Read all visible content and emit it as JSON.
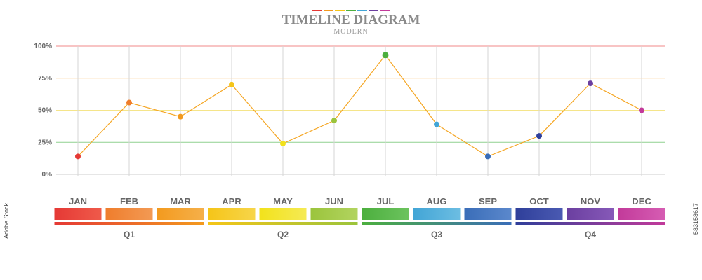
{
  "chart_data": {
    "type": "line",
    "title": "TIMELINE DIAGRAM",
    "subtitle": "MODERN",
    "categories": [
      "JAN",
      "FEB",
      "MAR",
      "APR",
      "MAY",
      "JUN",
      "JUL",
      "AUG",
      "SEP",
      "OCT",
      "NOV",
      "DEC"
    ],
    "values": [
      14,
      56,
      45,
      70,
      24,
      42,
      93,
      39,
      14,
      30,
      71,
      50
    ],
    "ylim": [
      0,
      100
    ],
    "yticks": [
      {
        "value": 0,
        "label": "0%",
        "color": "#cccccc"
      },
      {
        "value": 25,
        "label": "25%",
        "color": "#8fd18f"
      },
      {
        "value": 50,
        "label": "50%",
        "color": "#f5e58a"
      },
      {
        "value": 75,
        "label": "75%",
        "color": "#f9c98a"
      },
      {
        "value": 100,
        "label": "100%",
        "color": "#f08a8a"
      }
    ],
    "line_color": "#f5a623",
    "point_colors": [
      "#e53935",
      "#ef7d2c",
      "#f39a1e",
      "#f5c518",
      "#f2e21b",
      "#9bc43c",
      "#4caf3e",
      "#42a5d6",
      "#3a6db8",
      "#2f3f9a",
      "#6b3fa0",
      "#c23a9a"
    ],
    "bar_colors": [
      [
        "#e53935",
        "#ef5a4a"
      ],
      [
        "#ef7d2c",
        "#f39a54"
      ],
      [
        "#f39a1e",
        "#f5b04a"
      ],
      [
        "#f5c518",
        "#f7d54a"
      ],
      [
        "#f2e21b",
        "#f5ea54"
      ],
      [
        "#9bc43c",
        "#b2d460"
      ],
      [
        "#4caf3e",
        "#6cc35e"
      ],
      [
        "#42a5d6",
        "#6cbde2"
      ],
      [
        "#3a6db8",
        "#5b88cc"
      ],
      [
        "#2f3f9a",
        "#4a5ab2"
      ],
      [
        "#6b3fa0",
        "#8659b8"
      ],
      [
        "#c23a9a",
        "#d65db3"
      ]
    ],
    "quarters": [
      {
        "label": "Q1",
        "start": 0,
        "end": 2,
        "colors": [
          "#e53935",
          "#f39a1e"
        ]
      },
      {
        "label": "Q2",
        "start": 3,
        "end": 5,
        "colors": [
          "#f5c518",
          "#9bc43c"
        ]
      },
      {
        "label": "Q3",
        "start": 6,
        "end": 8,
        "colors": [
          "#4caf3e",
          "#3a6db8"
        ]
      },
      {
        "label": "Q4",
        "start": 9,
        "end": 11,
        "colors": [
          "#2f3f9a",
          "#c23a9a"
        ]
      }
    ],
    "title_dash_colors": [
      "#e53935",
      "#f39a1e",
      "#f5c518",
      "#4caf3e",
      "#42a5d6",
      "#6b3fa0",
      "#c23a9a"
    ]
  },
  "watermark": {
    "text": "583158617",
    "left_text": "Adobe Stock"
  }
}
